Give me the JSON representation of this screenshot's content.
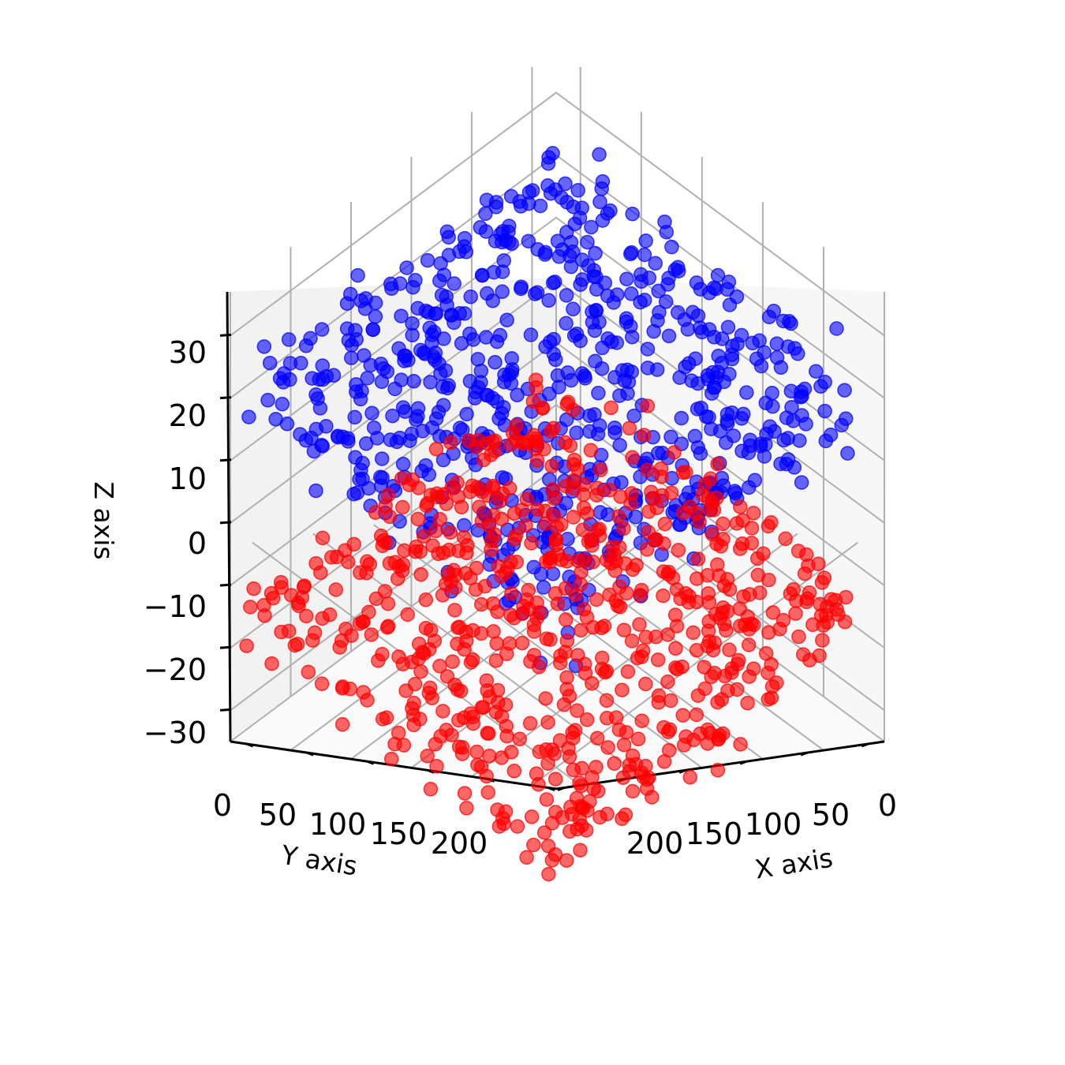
{
  "chart_data": {
    "type": "scatter",
    "projection": "3d",
    "title": "",
    "xlabel": "X axis",
    "ylabel": "Y axis",
    "zlabel": "Z axis",
    "xlim": [
      0,
      250
    ],
    "ylim": [
      0,
      250
    ],
    "zlim": [
      -35,
      37
    ],
    "x_ticks": [
      "0",
      "50",
      "100",
      "150",
      "200"
    ],
    "y_ticks": [
      "0",
      "50",
      "100",
      "150",
      "200"
    ],
    "z_ticks": [
      "−30",
      "−20",
      "−10",
      "0",
      "10",
      "20",
      "30"
    ],
    "z_tick_values": [
      -30,
      -20,
      -10,
      0,
      10,
      20,
      30
    ],
    "grid": true,
    "legend": "none",
    "marker": "circle",
    "alpha": 0.6,
    "colors": {
      "series_upper": "#0000ff",
      "series_lower": "#ff0000",
      "pane_left": "#f2f2f2",
      "pane_right": "#f7f7f7",
      "pane_floor": "#fafafa",
      "grid": "#b0b0b0"
    },
    "series": [
      {
        "color": "#0000ff",
        "count": 1000,
        "x_range": [
          0,
          250
        ],
        "y_range": [
          0,
          250
        ],
        "z_center": 20,
        "z_spread": 5,
        "z_range": [
          11,
          32
        ]
      },
      {
        "color": "#ff0000",
        "count": 1000,
        "x_range": [
          0,
          250
        ],
        "y_range": [
          0,
          250
        ],
        "z_center": -15,
        "z_spread": 5,
        "z_range": [
          -25,
          -5
        ]
      }
    ]
  }
}
